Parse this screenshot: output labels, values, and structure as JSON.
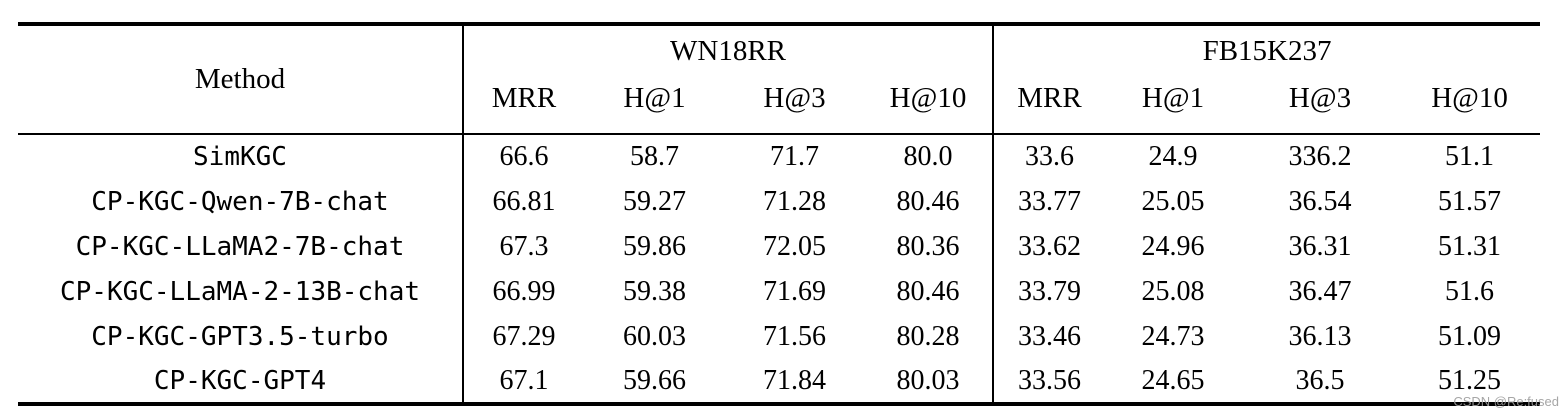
{
  "table": {
    "method_header": "Method",
    "groups": [
      {
        "label": "WN18RR",
        "cols": [
          "MRR",
          "H@1",
          "H@3",
          "H@10"
        ]
      },
      {
        "label": "FB15K237",
        "cols": [
          "MRR",
          "H@1",
          "H@3",
          "H@10"
        ]
      }
    ],
    "rows": [
      {
        "method": "SimKGC",
        "wn18rr": [
          "66.6",
          "58.7",
          "71.7",
          "80.0"
        ],
        "wn_bold": false,
        "fb15k237": [
          "33.6",
          "24.9",
          "336.2",
          "51.1"
        ],
        "fb_bold": false
      },
      {
        "method": "CP-KGC-Qwen-7B-chat",
        "wn18rr": [
          "66.81",
          "59.27",
          "71.28",
          "80.46"
        ],
        "wn_bold": false,
        "fb15k237": [
          "33.77",
          "25.05",
          "36.54",
          "51.57"
        ],
        "fb_bold": true
      },
      {
        "method": "CP-KGC-LLaMA2-7B-chat",
        "wn18rr": [
          "67.3",
          "59.86",
          "72.05",
          "80.36"
        ],
        "wn_bold": true,
        "fb15k237": [
          "33.62",
          "24.96",
          "36.31",
          "51.31"
        ],
        "fb_bold": false
      },
      {
        "method": "CP-KGC-LLaMA-2-13B-chat",
        "wn18rr": [
          "66.99",
          "59.38",
          "71.69",
          "80.46"
        ],
        "wn_bold": false,
        "fb15k237": [
          "33.79",
          "25.08",
          "36.47",
          "51.6"
        ],
        "fb_bold": true
      },
      {
        "method": "CP-KGC-GPT3.5-turbo",
        "wn18rr": [
          "67.29",
          "60.03",
          "71.56",
          "80.28"
        ],
        "wn_bold": false,
        "fb15k237": [
          "33.46",
          "24.73",
          "36.13",
          "51.09"
        ],
        "fb_bold": false
      },
      {
        "method": "CP-KGC-GPT4",
        "wn18rr": [
          "67.1",
          "59.66",
          "71.84",
          "80.03"
        ],
        "wn_bold": false,
        "fb15k237": [
          "33.56",
          "24.65",
          "36.5",
          "51.25"
        ],
        "fb_bold": false
      }
    ]
  },
  "watermark": "CSDN @Re:fused",
  "colors": {
    "text": "#000000",
    "rule": "#000000",
    "watermark": "#9d9d9d"
  }
}
